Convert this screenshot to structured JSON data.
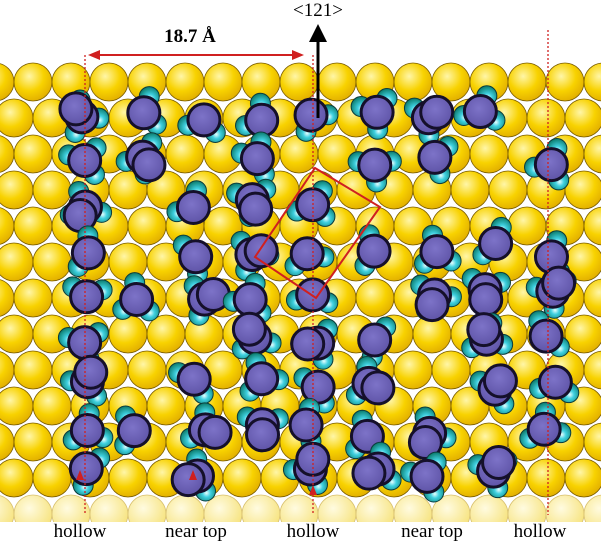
{
  "labels": {
    "dimension": "18.7 Å",
    "direction": "<121>"
  },
  "sites": [
    "hollow",
    "near top",
    "hollow",
    "near top",
    "hollow"
  ]
}
